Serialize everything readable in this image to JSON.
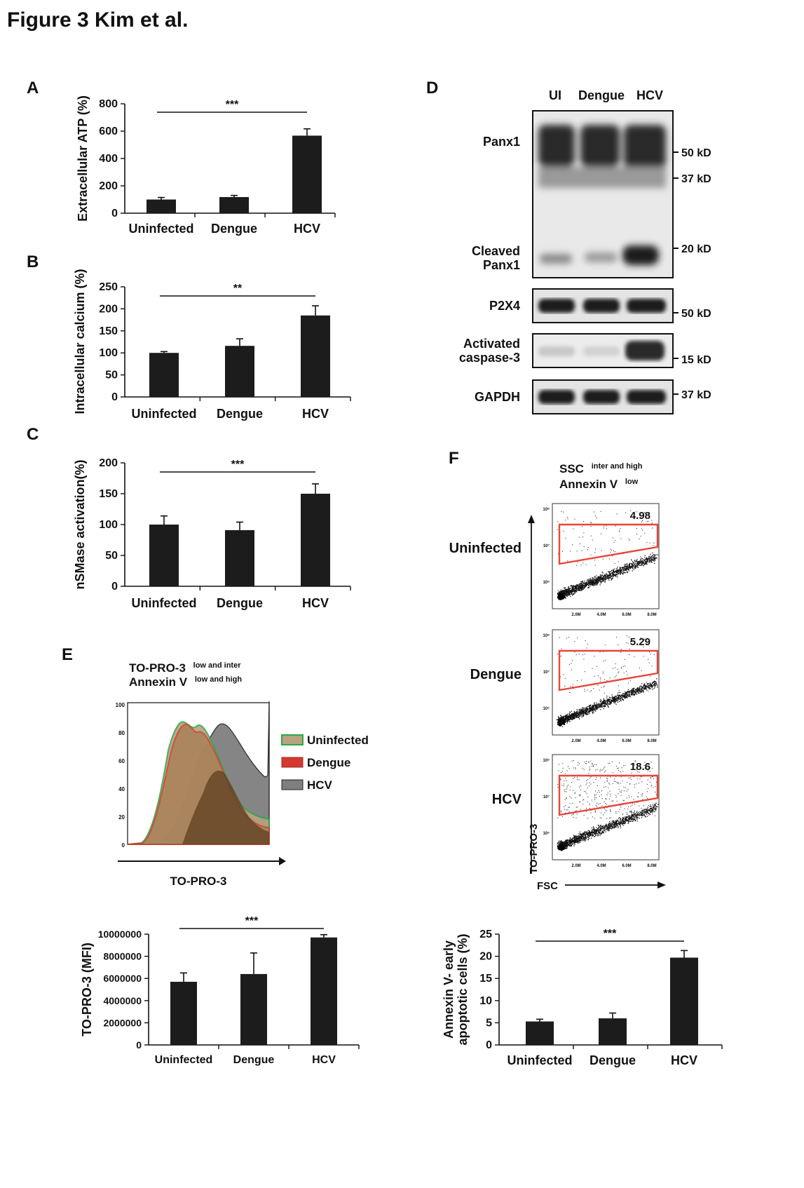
{
  "figure_title": "Figure 3 Kim et al.",
  "panel_labels": [
    "A",
    "B",
    "C",
    "D",
    "E",
    "F"
  ],
  "categories": [
    "Uninfected",
    "Dengue",
    "HCV"
  ],
  "chart_data": [
    {
      "panel": "A",
      "type": "bar",
      "ylabel": "Extracellular ATP (%)",
      "ylim": [
        0,
        800
      ],
      "yticks": [
        "800",
        "600",
        "400",
        "200",
        "0"
      ],
      "tickvals": [
        800,
        600,
        400,
        200,
        0
      ],
      "values": [
        100,
        118,
        567
      ],
      "errors": [
        15,
        12,
        50
      ],
      "sig_label": "***",
      "sig_span": [
        0,
        2
      ]
    },
    {
      "panel": "B",
      "type": "bar",
      "ylabel": "Intracellular calcium (%)",
      "ylim": [
        0,
        250
      ],
      "yticks": [
        "250",
        "200",
        "150",
        "100",
        "50",
        "0"
      ],
      "tickvals": [
        250,
        200,
        150,
        100,
        50,
        0
      ],
      "values": [
        100,
        116,
        185
      ],
      "errors": [
        3,
        16,
        22
      ],
      "sig_label": "**",
      "sig_span": [
        0,
        2
      ]
    },
    {
      "panel": "C",
      "type": "bar",
      "ylabel": "nSMase activation(%)",
      "ylim": [
        0,
        200
      ],
      "yticks": [
        "200",
        "150",
        "100",
        "50",
        "0"
      ],
      "tickvals": [
        200,
        150,
        100,
        50,
        0
      ],
      "values": [
        100,
        91,
        150
      ],
      "errors": [
        14,
        13,
        16
      ],
      "sig_label": "***",
      "sig_span": [
        0,
        2
      ]
    },
    {
      "panel": "E",
      "type": "bar",
      "ylabel": "TO-PRO-3 (MFI)",
      "ylim": [
        0,
        10000000
      ],
      "yticks": [
        "10000000",
        "8000000",
        "6000000",
        "4000000",
        "2000000",
        "0"
      ],
      "tickvals": [
        10000000,
        8000000,
        6000000,
        4000000,
        2000000,
        0
      ],
      "values": [
        5700000,
        6400000,
        9700000
      ],
      "errors": [
        800000,
        1900000,
        250000
      ],
      "sig_label": "***",
      "sig_span": [
        0,
        2
      ]
    },
    {
      "panel": "F",
      "type": "bar",
      "ylabel": "Annexin V- early apoptotic cells (%)",
      "ylabel_lines": [
        "Annexin V- early",
        "apoptotic cells (%)"
      ],
      "ylim": [
        0,
        25
      ],
      "yticks": [
        "25",
        "20",
        "15",
        "10",
        "5",
        "0"
      ],
      "tickvals": [
        25,
        20,
        15,
        10,
        5,
        0
      ],
      "values": [
        5.3,
        6.0,
        19.7
      ],
      "errors": [
        0.5,
        1.2,
        1.6
      ],
      "sig_label": "***",
      "sig_span": [
        0,
        2
      ]
    }
  ],
  "western": {
    "lanes": [
      "UI",
      "Dengue",
      "HCV"
    ],
    "labels": {
      "panx1": "Panx1",
      "cleaved_1": "Cleaved",
      "cleaved_2": "Panx1",
      "p2x4": "P2X4",
      "act_1": "Activated",
      "act_2": "caspase-3",
      "gapdh": "GAPDH"
    },
    "markers": {
      "m50": "50 kD",
      "m37": "37 kD",
      "m20": "20 kD",
      "m50b": "50 kD",
      "m15": "15 kD",
      "m37b": "37 kD"
    }
  },
  "histogram": {
    "gate_1_main": "TO-PRO-3",
    "gate_1_sup": "low and inter",
    "gate_2_main": "Annexin V",
    "gate_2_sup": "low and high",
    "xlabel": "TO-PRO-3",
    "yticks": [
      "100",
      "80",
      "60",
      "40",
      "20",
      "0"
    ],
    "legend": [
      {
        "label": "Uninfected",
        "color": "#2ea84a"
      },
      {
        "label": "Dengue",
        "color": "#d43a2f"
      },
      {
        "label": "HCV",
        "color": "#7f7f7f"
      }
    ]
  },
  "flow": {
    "gate_1_main": "SSC",
    "gate_1_sup": "inter and high",
    "gate_2_main": "Annexin V",
    "gate_2_sup": "low",
    "rows": [
      {
        "label": "Uninfected",
        "value": "4.98"
      },
      {
        "label": "Dengue",
        "value": "5.29"
      },
      {
        "label": "HCV",
        "value": "18.6"
      }
    ],
    "ylabel": "TO-PRO-3",
    "xlabel": "FSC",
    "x_ticks": [
      "2.0M",
      "4.0M",
      "6.0M",
      "8.0M"
    ],
    "y_ticks": [
      "10⁸",
      "10⁷",
      "10⁶"
    ],
    "gate_color": "#e8463a"
  }
}
